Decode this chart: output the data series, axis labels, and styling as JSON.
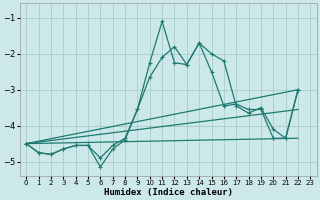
{
  "xlabel": "Humidex (Indice chaleur)",
  "xlim": [
    -0.5,
    23.5
  ],
  "ylim": [
    -5.4,
    -0.6
  ],
  "yticks": [
    -5,
    -4,
    -3,
    -2,
    -1
  ],
  "xticks": [
    0,
    1,
    2,
    3,
    4,
    5,
    6,
    7,
    8,
    9,
    10,
    11,
    12,
    13,
    14,
    15,
    16,
    17,
    18,
    19,
    20,
    21,
    22,
    23
  ],
  "bg_color": "#cde8e8",
  "grid_color": "#a8cccc",
  "line_color": "#1e7a70",
  "curve1_x": [
    0,
    1,
    2,
    3,
    4,
    5,
    6,
    7,
    8,
    9,
    10,
    11,
    12,
    13,
    14,
    15,
    16,
    17,
    18,
    19,
    20,
    21,
    22
  ],
  "curve1_y": [
    -4.5,
    -4.75,
    -4.8,
    -4.65,
    -4.55,
    -4.55,
    -5.15,
    -4.65,
    -4.4,
    -3.55,
    -2.25,
    -1.1,
    -2.25,
    -2.3,
    -1.7,
    -2.5,
    -3.45,
    -3.4,
    -3.55,
    -3.55,
    -4.35,
    -4.35,
    -3.0
  ],
  "curve2_x": [
    0,
    1,
    2,
    3,
    4,
    5,
    6,
    7,
    8,
    9,
    10,
    11,
    12,
    13,
    14,
    15,
    16,
    17,
    18,
    19,
    20,
    21,
    22
  ],
  "curve2_y": [
    -4.5,
    -4.75,
    -4.8,
    -4.65,
    -4.55,
    -4.55,
    -4.9,
    -4.55,
    -4.35,
    -3.55,
    -2.65,
    -2.1,
    -1.8,
    -2.3,
    -1.7,
    -2.0,
    -2.2,
    -3.45,
    -3.65,
    -3.5,
    -4.1,
    -4.35,
    -3.0
  ],
  "line3_x": [
    0,
    22
  ],
  "line3_y": [
    -4.5,
    -3.0
  ],
  "line4_x": [
    0,
    22
  ],
  "line4_y": [
    -4.5,
    -3.55
  ],
  "line5_x": [
    0,
    22
  ],
  "line5_y": [
    -4.5,
    -4.35
  ]
}
